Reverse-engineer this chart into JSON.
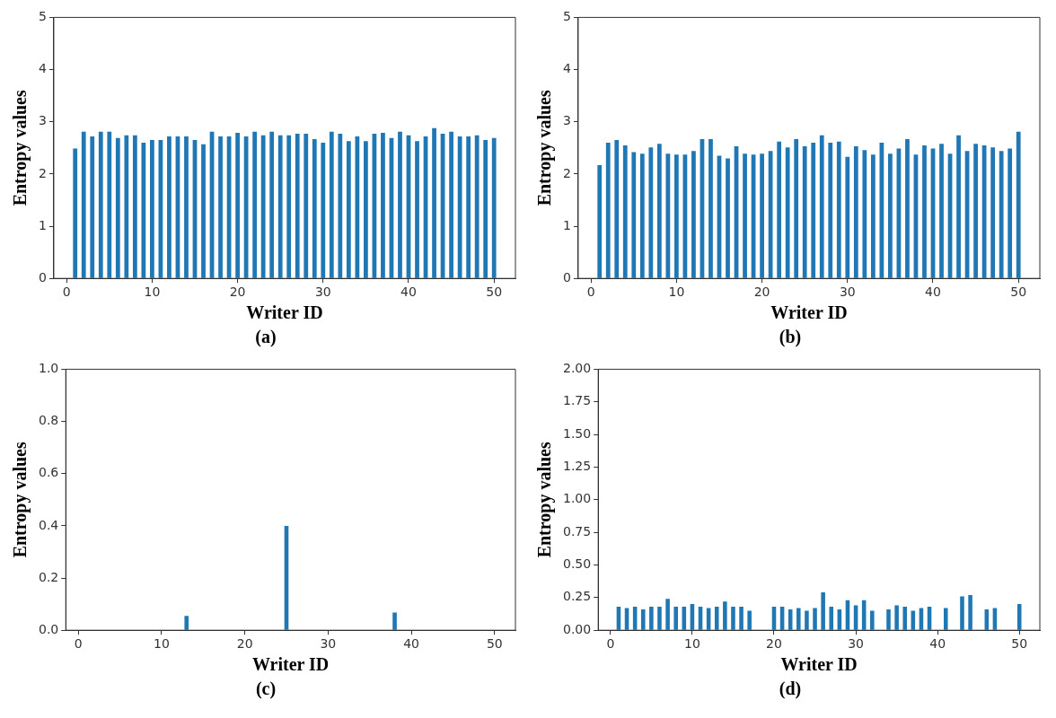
{
  "chart_data": [
    {
      "type": "bar",
      "xlabel": "Writer ID",
      "ylabel": "Entropy values",
      "annotations": [
        "(a)"
      ],
      "color": "#1f77b4",
      "x": [
        1,
        2,
        3,
        4,
        5,
        6,
        7,
        8,
        9,
        10,
        11,
        12,
        13,
        14,
        15,
        16,
        17,
        18,
        19,
        20,
        21,
        22,
        23,
        24,
        25,
        26,
        27,
        28,
        29,
        30,
        31,
        32,
        33,
        34,
        35,
        36,
        37,
        38,
        39,
        40,
        41,
        42,
        43,
        44,
        45,
        46,
        47,
        48,
        49,
        50
      ],
      "values": [
        2.49,
        2.81,
        2.72,
        2.81,
        2.81,
        2.69,
        2.74,
        2.74,
        2.6,
        2.65,
        2.65,
        2.72,
        2.72,
        2.72,
        2.65,
        2.57,
        2.81,
        2.72,
        2.72,
        2.79,
        2.72,
        2.81,
        2.74,
        2.81,
        2.74,
        2.74,
        2.77,
        2.77,
        2.67,
        2.6,
        2.81,
        2.77,
        2.63,
        2.72,
        2.63,
        2.77,
        2.79,
        2.69,
        2.81,
        2.74,
        2.63,
        2.72,
        2.88,
        2.77,
        2.81,
        2.72,
        2.72,
        2.74,
        2.65,
        2.69
      ],
      "xlim": [
        -1.5,
        52.5
      ],
      "xticks": [
        0,
        10,
        20,
        30,
        40,
        50
      ],
      "ylim": [
        0,
        5
      ],
      "yticks": [
        0,
        1,
        2,
        3,
        4,
        5
      ]
    },
    {
      "type": "bar",
      "xlabel": "Writer ID",
      "ylabel": "Entropy values",
      "annotations": [
        "(b)"
      ],
      "color": "#1f77b4",
      "x": [
        1,
        2,
        3,
        4,
        5,
        6,
        7,
        8,
        9,
        10,
        11,
        12,
        13,
        14,
        15,
        16,
        17,
        18,
        19,
        20,
        21,
        22,
        23,
        24,
        25,
        26,
        27,
        28,
        29,
        30,
        31,
        32,
        33,
        34,
        35,
        36,
        37,
        38,
        39,
        40,
        41,
        42,
        43,
        44,
        45,
        46,
        47,
        48,
        49,
        50
      ],
      "values": [
        2.17,
        2.6,
        2.65,
        2.55,
        2.42,
        2.39,
        2.51,
        2.58,
        2.39,
        2.37,
        2.37,
        2.44,
        2.67,
        2.67,
        2.35,
        2.3,
        2.53,
        2.39,
        2.37,
        2.39,
        2.44,
        2.62,
        2.51,
        2.67,
        2.53,
        2.6,
        2.74,
        2.6,
        2.62,
        2.33,
        2.53,
        2.46,
        2.37,
        2.6,
        2.39,
        2.49,
        2.67,
        2.37,
        2.55,
        2.49,
        2.58,
        2.39,
        2.74,
        2.44,
        2.58,
        2.55,
        2.51,
        2.44,
        2.49,
        2.81
      ],
      "xlim": [
        -1.5,
        52.5
      ],
      "xticks": [
        0,
        10,
        20,
        30,
        40,
        50
      ],
      "ylim": [
        0,
        5
      ],
      "yticks": [
        0,
        1,
        2,
        3,
        4,
        5
      ]
    },
    {
      "type": "bar",
      "xlabel": "Writer ID",
      "ylabel": "Entropy values",
      "annotations": [
        "(c)"
      ],
      "color": "#1f77b4",
      "x": [
        1,
        2,
        3,
        4,
        5,
        6,
        7,
        8,
        9,
        10,
        11,
        12,
        13,
        14,
        15,
        16,
        17,
        18,
        19,
        20,
        21,
        22,
        23,
        24,
        25,
        26,
        27,
        28,
        29,
        30,
        31,
        32,
        33,
        34,
        35,
        36,
        37,
        38,
        39,
        40,
        41,
        42,
        43,
        44,
        45,
        46,
        47,
        48,
        49,
        50
      ],
      "values": [
        0,
        0,
        0,
        0,
        0,
        0,
        0,
        0,
        0,
        0,
        0,
        0,
        0.055,
        0,
        0,
        0,
        0,
        0,
        0,
        0,
        0,
        0,
        0,
        0,
        0.4,
        0,
        0,
        0,
        0,
        0,
        0,
        0,
        0,
        0,
        0,
        0,
        0,
        0.068,
        0,
        0,
        0,
        0,
        0,
        0,
        0,
        0,
        0,
        0,
        0,
        0
      ],
      "xlim": [
        -1.5,
        52.5
      ],
      "xticks": [
        0,
        10,
        20,
        30,
        40,
        50
      ],
      "ylim": [
        0,
        1
      ],
      "yticks": [
        {
          "value": 0,
          "label": "0.0"
        },
        0.2,
        0.4,
        0.6,
        0.8,
        {
          "value": 1,
          "label": "1.0"
        }
      ]
    },
    {
      "type": "bar",
      "xlabel": "Writer ID",
      "ylabel": "Entropy values",
      "annotations": [
        "(d)"
      ],
      "color": "#1f77b4",
      "x": [
        1,
        2,
        3,
        4,
        5,
        6,
        7,
        8,
        9,
        10,
        11,
        12,
        13,
        14,
        15,
        16,
        17,
        18,
        19,
        20,
        21,
        22,
        23,
        24,
        25,
        26,
        27,
        28,
        29,
        30,
        31,
        32,
        33,
        34,
        35,
        36,
        37,
        38,
        39,
        40,
        41,
        42,
        43,
        44,
        45,
        46,
        47,
        48,
        49,
        50
      ],
      "values": [
        0.18,
        0.17,
        0.18,
        0.16,
        0.18,
        0.18,
        0.24,
        0.18,
        0.18,
        0.2,
        0.18,
        0.17,
        0.18,
        0.22,
        0.18,
        0.18,
        0.15,
        0,
        0,
        0.18,
        0.18,
        0.16,
        0.17,
        0.15,
        0.17,
        0.29,
        0.18,
        0.16,
        0.23,
        0.19,
        0.23,
        0.15,
        0,
        0.16,
        0.19,
        0.18,
        0.15,
        0.17,
        0.18,
        0,
        0.17,
        0,
        0.26,
        0.27,
        0,
        0.16,
        0.17,
        0,
        0,
        0.2
      ],
      "xlim": [
        -1.5,
        52.5
      ],
      "xticks": [
        0,
        10,
        20,
        30,
        40,
        50
      ],
      "ylim": [
        0,
        2
      ],
      "yticks": [
        {
          "value": 0,
          "label": "0.00"
        },
        {
          "value": 0.25,
          "label": "0.25"
        },
        {
          "value": 0.5,
          "label": "0.50"
        },
        {
          "value": 0.75,
          "label": "0.75"
        },
        {
          "value": 1,
          "label": "1.00"
        },
        {
          "value": 1.25,
          "label": "1.25"
        },
        {
          "value": 1.5,
          "label": "1.50"
        },
        {
          "value": 1.75,
          "label": "1.75"
        },
        {
          "value": 2,
          "label": "2.00"
        }
      ]
    }
  ]
}
